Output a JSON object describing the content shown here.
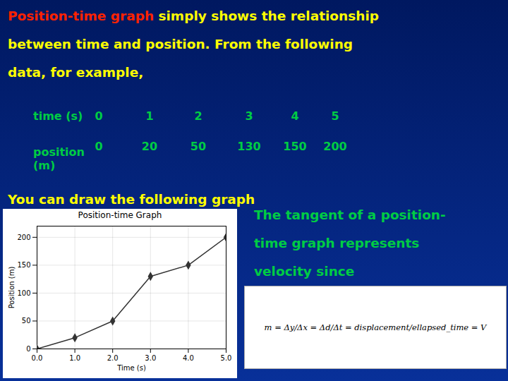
{
  "chart_data": {
    "type": "line",
    "title": "Position-time Graph",
    "x_label": "Time (s)",
    "y_label": "Position (m)",
    "x": [
      0,
      1,
      2,
      3,
      4,
      5
    ],
    "values": [
      0,
      20,
      50,
      130,
      150,
      200
    ],
    "color": "#333333",
    "marker": "diamond",
    "xlim": [
      0,
      5
    ],
    "ylim": [
      0,
      220
    ],
    "xticks": [
      0,
      1,
      2,
      3,
      4,
      5
    ],
    "yticks": [
      0,
      50,
      100,
      150,
      200
    ],
    "grid": true,
    "annotations": [
      [
        {
          "text": "Position-time graph",
          "color": "#ff2200"
        },
        {
          "text": " simply shows the relationship",
          "color": "#ffff00"
        }
      ],
      [
        {
          "text": "between time and position. From the following",
          "color": "#ffff00"
        }
      ],
      [
        {
          "text": "data, for example,",
          "color": "#ffff00"
        }
      ],
      [
        {
          "text": "You can draw the following graph",
          "color": "#ffff00"
        }
      ],
      [
        {
          "text": "The tangent of a position-",
          "color": "#00cc44"
        }
      ],
      [
        {
          "text": "time graph represents",
          "color": "#00cc44"
        }
      ],
      [
        {
          "text": "velocity since",
          "color": "#00cc44"
        }
      ]
    ],
    "table": {
      "color": "#00cc44",
      "rows": [
        {
          "label": "time (s)",
          "values": [
            0,
            1,
            2,
            3,
            4,
            5
          ]
        },
        {
          "label": "position\n(m)",
          "values": [
            0,
            20,
            50,
            130,
            150,
            200
          ]
        }
      ]
    },
    "formula": {
      "text": "m = Δy/Δx = Δd/Δt = displacement/ellapsed_time = V",
      "color": "black"
    }
  }
}
